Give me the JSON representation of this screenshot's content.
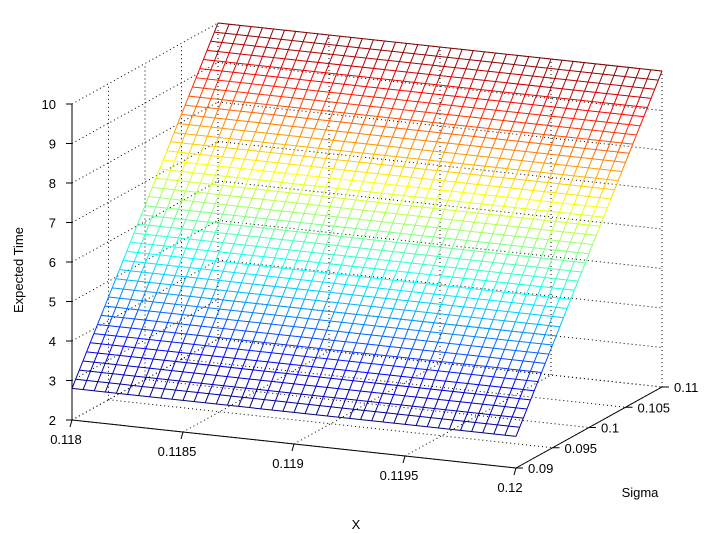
{
  "chart_data": {
    "type": "surface",
    "title": "",
    "xlabel": "X",
    "ylabel": "Sigma",
    "zlabel": "Expected Time",
    "x_range": [
      0.118,
      0.12
    ],
    "y_range": [
      0.09,
      0.11
    ],
    "z_range": [
      2,
      10
    ],
    "x_ticks": [
      "0.118",
      "0.1185",
      "0.119",
      "0.1195",
      "0.12"
    ],
    "y_ticks": [
      "0.09",
      "0.095",
      "0.1",
      "0.105",
      "0.11"
    ],
    "z_ticks": [
      "2",
      "3",
      "4",
      "5",
      "6",
      "7",
      "8",
      "9",
      "10"
    ],
    "grid": true,
    "colormap": "jet",
    "mesh_density": 40,
    "surface": {
      "corner_values": {
        "x0.118_sigma0.09": 2.8,
        "x0.12_sigma0.09": 2.8,
        "x0.118_sigma0.11": 10.0,
        "x0.12_sigma0.11": 10.0
      },
      "description_of_trend": "Expected Time increases approximately linearly with Sigma"
    }
  }
}
